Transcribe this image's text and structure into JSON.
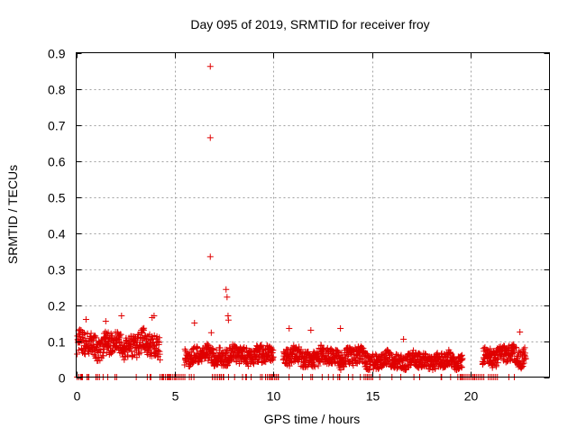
{
  "chart_data": {
    "type": "scatter",
    "title": "Day 095 of 2019, SRMTID for receiver froy",
    "xlabel": "GPS time / hours",
    "ylabel": "SRMTID / TECUs",
    "xlim": [
      0,
      24
    ],
    "ylim": [
      0,
      0.9
    ],
    "xticks": [
      0,
      5,
      10,
      15,
      20
    ],
    "yticks": [
      0,
      0.1,
      0.2,
      0.3,
      0.4,
      0.5,
      0.6,
      0.7,
      0.8,
      0.9
    ],
    "grid": true,
    "marker": "+",
    "marker_color": "#e00000",
    "segments": [
      {
        "start": 0.05,
        "end": 4.25,
        "mean": 0.09,
        "spread": 0.045
      },
      {
        "start": 5.5,
        "end": 10.0,
        "mean": 0.06,
        "spread": 0.035
      },
      {
        "start": 10.5,
        "end": 14.8,
        "mean": 0.055,
        "spread": 0.035
      },
      {
        "start": 14.8,
        "end": 19.6,
        "mean": 0.045,
        "spread": 0.03
      },
      {
        "start": 20.6,
        "end": 22.8,
        "mean": 0.06,
        "spread": 0.035
      }
    ],
    "highlights": [
      {
        "x": 6.8,
        "y": 0.862
      },
      {
        "x": 6.8,
        "y": 0.664
      },
      {
        "x": 6.8,
        "y": 0.334
      },
      {
        "x": 7.6,
        "y": 0.243
      },
      {
        "x": 7.65,
        "y": 0.222
      },
      {
        "x": 7.7,
        "y": 0.17
      },
      {
        "x": 7.72,
        "y": 0.158
      },
      {
        "x": 6.85,
        "y": 0.123
      },
      {
        "x": 3.85,
        "y": 0.165
      },
      {
        "x": 3.95,
        "y": 0.17
      },
      {
        "x": 0.5,
        "y": 0.16
      },
      {
        "x": 1.5,
        "y": 0.155
      },
      {
        "x": 2.3,
        "y": 0.17
      },
      {
        "x": 6.0,
        "y": 0.15
      },
      {
        "x": 10.8,
        "y": 0.135
      },
      {
        "x": 11.9,
        "y": 0.13
      },
      {
        "x": 13.4,
        "y": 0.135
      },
      {
        "x": 16.6,
        "y": 0.105
      },
      {
        "x": 22.5,
        "y": 0.125
      }
    ],
    "zero_ranges": [
      [
        0.05,
        0.4
      ],
      [
        1.0,
        1.2
      ],
      [
        4.25,
        5.55
      ],
      [
        7.0,
        7.5
      ],
      [
        9.6,
        10.3
      ],
      [
        14.6,
        15.0
      ],
      [
        19.5,
        20.7
      ],
      [
        21.0,
        21.3
      ]
    ]
  }
}
